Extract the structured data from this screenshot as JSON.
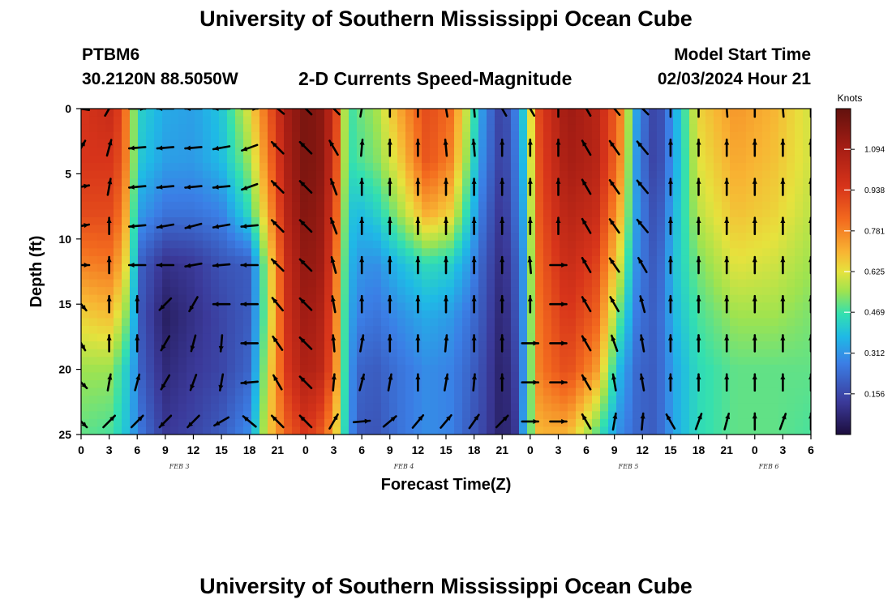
{
  "header": {
    "title": "University of Southern Mississippi Ocean Cube",
    "station": "PTBM6",
    "coords": "30.2120N  88.5050W",
    "subtitle": "2-D Currents Speed-Magnitude",
    "model_start_label": "Model Start Time",
    "model_start_value": "02/03/2024 Hour 21"
  },
  "footer": {
    "title": "University of Southern Mississippi Ocean Cube"
  },
  "chart_data": {
    "type": "heatmap",
    "title": "2-D Currents Speed-Magnitude",
    "xlabel": "Forecast Time(Z)",
    "ylabel": "Depth (ft)",
    "x_range": [
      0,
      78
    ],
    "y_range": [
      0,
      25
    ],
    "x_ticks": [
      0,
      3,
      6,
      9,
      12,
      15,
      18,
      21,
      24,
      27,
      30,
      33,
      36,
      39,
      42,
      45,
      48,
      51,
      54,
      57,
      60,
      63,
      66,
      69,
      72,
      75,
      78
    ],
    "x_tick_labels": [
      "0",
      "3",
      "6",
      "9",
      "12",
      "15",
      "18",
      "21",
      "0",
      "3",
      "6",
      "9",
      "12",
      "15",
      "18",
      "21",
      "0",
      "3",
      "6",
      "9",
      "12",
      "15",
      "18",
      "21",
      "0",
      "3",
      "6"
    ],
    "y_ticks": [
      0,
      5,
      10,
      15,
      20,
      25
    ],
    "y_tick_labels": [
      "0",
      "5",
      "10",
      "15",
      "20",
      "25"
    ],
    "date_labels": [
      {
        "label": "FEB 3",
        "x": 10.5
      },
      {
        "label": "FEB 4",
        "x": 34.5
      },
      {
        "label": "FEB 5",
        "x": 58.5
      },
      {
        "label": "FEB 6",
        "x": 73.5
      }
    ],
    "colorbar": {
      "unit": "Knots",
      "min": 0.0,
      "max": 1.25,
      "ticks": [
        0.156,
        0.312,
        0.469,
        0.625,
        0.781,
        0.938,
        1.094
      ],
      "tick_labels": [
        "0.156",
        "0.312",
        "0.469",
        "0.625",
        "0.781",
        "0.938",
        "1.094"
      ]
    },
    "speed_profiles": [
      {
        "t": 0,
        "s": [
          0.95,
          0.95,
          0.9,
          0.78,
          0.65,
          0.55,
          0.5
        ]
      },
      {
        "t": 3,
        "s": [
          1.0,
          0.95,
          0.9,
          0.8,
          0.68,
          0.55,
          0.48
        ]
      },
      {
        "t": 4.5,
        "s": [
          0.9,
          0.88,
          0.8,
          0.7,
          0.58,
          0.45,
          0.42
        ]
      },
      {
        "t": 5.5,
        "s": [
          0.55,
          0.55,
          0.5,
          0.45,
          0.4,
          0.35,
          0.33
        ]
      },
      {
        "t": 6.5,
        "s": [
          0.42,
          0.4,
          0.32,
          0.2,
          0.18,
          0.2,
          0.25
        ]
      },
      {
        "t": 9,
        "s": [
          0.35,
          0.33,
          0.25,
          0.1,
          0.05,
          0.08,
          0.12
        ]
      },
      {
        "t": 12,
        "s": [
          0.33,
          0.32,
          0.25,
          0.12,
          0.1,
          0.12,
          0.15
        ]
      },
      {
        "t": 15,
        "s": [
          0.4,
          0.38,
          0.28,
          0.18,
          0.15,
          0.15,
          0.2
        ]
      },
      {
        "t": 18,
        "s": [
          0.62,
          0.55,
          0.45,
          0.2,
          0.2,
          0.22,
          0.3
        ]
      },
      {
        "t": 20,
        "s": [
          0.85,
          0.8,
          0.72,
          0.6,
          0.58,
          0.62,
          0.65
        ]
      },
      {
        "t": 22,
        "s": [
          1.1,
          1.08,
          1.05,
          1.0,
          0.98,
          0.95,
          0.85
        ]
      },
      {
        "t": 24,
        "s": [
          1.2,
          1.2,
          1.18,
          1.15,
          1.12,
          1.08,
          0.95
        ]
      },
      {
        "t": 26,
        "s": [
          1.15,
          1.15,
          1.12,
          1.1,
          1.05,
          1.02,
          0.85
        ]
      },
      {
        "t": 27.6,
        "s": [
          0.85,
          0.82,
          0.78,
          0.72,
          0.7,
          0.68,
          0.6
        ]
      },
      {
        "t": 28.4,
        "s": [
          0.45,
          0.45,
          0.42,
          0.4,
          0.38,
          0.38,
          0.38
        ]
      },
      {
        "t": 29.5,
        "s": [
          0.5,
          0.48,
          0.38,
          0.32,
          0.28,
          0.22,
          0.2
        ]
      },
      {
        "t": 31.5,
        "s": [
          0.55,
          0.52,
          0.42,
          0.3,
          0.25,
          0.2,
          0.18
        ]
      },
      {
        "t": 34,
        "s": [
          0.72,
          0.65,
          0.55,
          0.38,
          0.3,
          0.25,
          0.25
        ]
      },
      {
        "t": 37,
        "s": [
          0.9,
          0.88,
          0.72,
          0.45,
          0.35,
          0.3,
          0.3
        ]
      },
      {
        "t": 39.5,
        "s": [
          0.82,
          0.78,
          0.65,
          0.42,
          0.32,
          0.28,
          0.28
        ]
      },
      {
        "t": 41.5,
        "s": [
          0.55,
          0.5,
          0.42,
          0.32,
          0.25,
          0.22,
          0.2
        ]
      },
      {
        "t": 43,
        "s": [
          0.3,
          0.28,
          0.24,
          0.2,
          0.18,
          0.16,
          0.15
        ]
      },
      {
        "t": 45,
        "s": [
          0.12,
          0.12,
          0.1,
          0.08,
          0.06,
          0.05,
          0.05
        ]
      },
      {
        "t": 46.5,
        "s": [
          0.28,
          0.26,
          0.24,
          0.2,
          0.18,
          0.15,
          0.12
        ]
      },
      {
        "t": 47.5,
        "s": [
          0.45,
          0.42,
          0.38,
          0.35,
          0.35,
          0.35,
          0.4
        ]
      },
      {
        "t": 49,
        "s": [
          0.92,
          0.9,
          0.88,
          0.85,
          0.82,
          0.8,
          0.7
        ]
      },
      {
        "t": 52,
        "s": [
          1.12,
          1.1,
          1.05,
          1.0,
          0.95,
          0.9,
          0.7
        ]
      },
      {
        "t": 55,
        "s": [
          1.05,
          1.05,
          1.0,
          0.92,
          0.85,
          0.75,
          0.5
        ]
      },
      {
        "t": 57.5,
        "s": [
          0.82,
          0.8,
          0.72,
          0.62,
          0.5,
          0.38,
          0.3
        ]
      },
      {
        "t": 59.5,
        "s": [
          0.3,
          0.28,
          0.3,
          0.28,
          0.25,
          0.22,
          0.22
        ]
      },
      {
        "t": 61.5,
        "s": [
          0.12,
          0.12,
          0.15,
          0.18,
          0.2,
          0.2,
          0.2
        ]
      },
      {
        "t": 63.5,
        "s": [
          0.35,
          0.35,
          0.38,
          0.4,
          0.38,
          0.35,
          0.35
        ]
      },
      {
        "t": 66,
        "s": [
          0.65,
          0.62,
          0.58,
          0.52,
          0.48,
          0.45,
          0.45
        ]
      },
      {
        "t": 70,
        "s": [
          0.75,
          0.72,
          0.68,
          0.62,
          0.55,
          0.5,
          0.5
        ]
      },
      {
        "t": 74,
        "s": [
          0.7,
          0.68,
          0.65,
          0.6,
          0.55,
          0.5,
          0.5
        ]
      },
      {
        "t": 78,
        "s": [
          0.6,
          0.6,
          0.58,
          0.55,
          0.52,
          0.5,
          0.48
        ]
      }
    ],
    "profile_depths": [
      0,
      4,
      8,
      12,
      16,
      20,
      25
    ],
    "vector_times": [
      0,
      3,
      6,
      9,
      12,
      15,
      18,
      21,
      24,
      27,
      30,
      33,
      36,
      39,
      42,
      45,
      48,
      51,
      54,
      57,
      60,
      63,
      66,
      69,
      72,
      75,
      78
    ],
    "vector_depths": [
      0,
      3,
      6,
      9,
      12,
      15,
      18,
      21,
      24
    ],
    "vectors": [
      [
        -170,
        -60,
        -10,
        -10,
        0,
        50,
        60,
        45,
        45
      ],
      [
        -60,
        -75,
        -80,
        -90,
        -90,
        -90,
        -90,
        -80,
        -45
      ],
      [
        0,
        175,
        175,
        175,
        180,
        -90,
        -90,
        -75,
        -45
      ],
      [
        180,
        175,
        175,
        170,
        180,
        135,
        120,
        120,
        135
      ],
      [
        180,
        175,
        175,
        165,
        170,
        120,
        105,
        110,
        135
      ],
      [
        180,
        170,
        175,
        170,
        175,
        180,
        95,
        100,
        150
      ],
      [
        0,
        160,
        160,
        175,
        180,
        180,
        180,
        175,
        -140
      ],
      [
        -140,
        -135,
        -135,
        -135,
        -135,
        -130,
        -125,
        -120,
        -135
      ],
      [
        -135,
        -135,
        -135,
        -135,
        -135,
        -135,
        -135,
        -135,
        -135
      ],
      [
        -135,
        -120,
        -110,
        -110,
        -105,
        -100,
        -95,
        -85,
        -60
      ],
      [
        -80,
        -85,
        -90,
        -90,
        -90,
        -90,
        -80,
        -75,
        -5
      ],
      [
        -90,
        -90,
        -90,
        -90,
        -90,
        -90,
        -90,
        -80,
        -40
      ],
      [
        -90,
        -90,
        -90,
        -90,
        -90,
        -90,
        -90,
        -90,
        -50
      ],
      [
        -100,
        -95,
        -90,
        -90,
        -90,
        -90,
        -85,
        -80,
        -50
      ],
      [
        -95,
        -95,
        -90,
        -90,
        -90,
        -90,
        -90,
        -85,
        -55
      ],
      [
        -120,
        -90,
        -90,
        -90,
        -90,
        -90,
        -90,
        -90,
        -45
      ],
      [
        -120,
        -90,
        -90,
        -90,
        -95,
        -90,
        0,
        0,
        0
      ],
      [
        -90,
        -90,
        -90,
        -90,
        0,
        0,
        0,
        0,
        0
      ],
      [
        -120,
        -120,
        -120,
        -120,
        -120,
        -120,
        -120,
        -120,
        -120
      ],
      [
        -130,
        -125,
        -125,
        -125,
        -125,
        -120,
        -110,
        -100,
        -80
      ],
      [
        -135,
        -130,
        -130,
        -130,
        -120,
        -105,
        -100,
        -100,
        -85
      ],
      [
        -90,
        -90,
        -90,
        -90,
        -90,
        -90,
        -90,
        -90,
        -120
      ],
      [
        -90,
        -90,
        -90,
        -90,
        -90,
        -90,
        -90,
        -90,
        -70
      ],
      [
        -95,
        -90,
        -90,
        -90,
        -90,
        -90,
        -90,
        -90,
        -75
      ],
      [
        -90,
        -90,
        -90,
        -90,
        -90,
        -90,
        -90,
        -90,
        -90
      ],
      [
        -95,
        -90,
        -90,
        -90,
        -90,
        -90,
        -90,
        -90,
        -70
      ],
      [
        -90,
        -90,
        -90,
        -90,
        -90,
        -90,
        -90,
        -90,
        -90
      ]
    ]
  }
}
